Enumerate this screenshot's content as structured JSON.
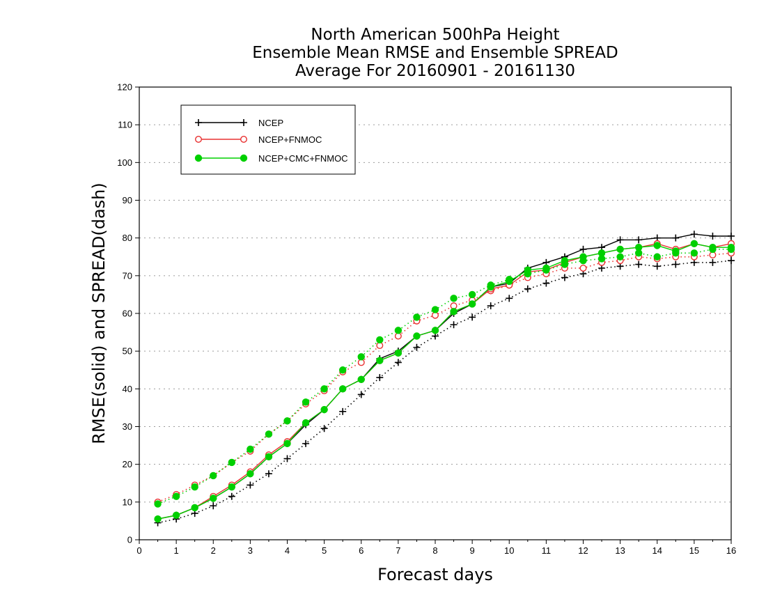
{
  "chart_data": {
    "type": "line",
    "title_lines": [
      "North American 500hPa Height",
      "Ensemble Mean RMSE and Ensemble SPREAD",
      "Average For 20160901 - 20161130"
    ],
    "xlabel": "Forecast days",
    "ylabel": "RMSE(solid) and SPREAD(dash)",
    "xlim": [
      0,
      16
    ],
    "ylim": [
      0,
      120
    ],
    "xticks": [
      0,
      1,
      2,
      3,
      4,
      5,
      6,
      7,
      8,
      9,
      10,
      11,
      12,
      13,
      14,
      15,
      16
    ],
    "yticks": [
      0,
      10,
      20,
      30,
      40,
      50,
      60,
      70,
      80,
      90,
      100,
      110,
      120
    ],
    "grid": true,
    "legend_position": "top-left",
    "x": [
      0.5,
      1,
      1.5,
      2,
      2.5,
      3,
      3.5,
      4,
      4.5,
      5,
      5.5,
      6,
      6.5,
      7,
      7.5,
      8,
      8.5,
      9,
      9.5,
      10,
      10.5,
      11,
      11.5,
      12,
      12.5,
      13,
      13.5,
      14,
      14.5,
      15,
      15.5,
      16
    ],
    "series": [
      {
        "name": "NCEP",
        "color": "#000000",
        "marker": "plus",
        "rmse": [
          5.5,
          6.5,
          8.5,
          11,
          14,
          17.5,
          22,
          25.5,
          30.5,
          34.5,
          40,
          42.5,
          48,
          50,
          54,
          55.5,
          60,
          62.5,
          67,
          68,
          72,
          73.5,
          75,
          77,
          77.5,
          79.5,
          79.5,
          80,
          80,
          81,
          80.5,
          80.5
        ],
        "spread": [
          4.5,
          5.5,
          7,
          9,
          11.5,
          14.5,
          17.5,
          21.5,
          25.5,
          29.5,
          34,
          38.5,
          43,
          47,
          51,
          54,
          57,
          59,
          62,
          64,
          66.5,
          68,
          69.5,
          70.5,
          72,
          72.5,
          73,
          72.5,
          73,
          73.5,
          73.5,
          74
        ]
      },
      {
        "name": "NCEP+FNMOC",
        "color": "#e83030",
        "marker": "open-circle",
        "rmse": [
          5.5,
          6.5,
          8.5,
          11.5,
          14.5,
          18,
          22.5,
          26,
          31,
          34.5,
          40,
          42.5,
          47.5,
          49.5,
          54,
          55.5,
          60.5,
          62.5,
          66.5,
          67.5,
          71,
          71.5,
          73.5,
          75,
          76,
          77,
          77.5,
          78.5,
          77,
          78.5,
          77.5,
          78.5
        ],
        "spread": [
          10,
          12,
          14.5,
          17,
          20.5,
          23.5,
          28,
          31.5,
          36,
          39.5,
          44.5,
          47,
          51.5,
          54,
          58,
          59.5,
          62,
          63.5,
          66,
          67.5,
          69.5,
          70.5,
          72,
          72,
          73.5,
          74,
          75,
          74.5,
          75,
          75,
          75.5,
          76
        ]
      },
      {
        "name": "NCEP+CMC+FNMOC",
        "color": "#00d000",
        "marker": "filled-circle",
        "rmse": [
          5.5,
          6.5,
          8.5,
          11,
          14,
          17.5,
          22,
          25.5,
          31,
          34.5,
          40,
          42.5,
          47.5,
          49.5,
          54,
          55.5,
          60.5,
          62.5,
          67,
          68.5,
          71.5,
          72,
          74,
          75,
          76,
          77,
          77.5,
          78,
          76.5,
          78.5,
          77.5,
          77.5
        ],
        "spread": [
          9.5,
          11.5,
          14,
          17,
          20.5,
          24,
          28,
          31.5,
          36.5,
          40,
          45,
          48.5,
          53,
          55.5,
          59,
          61,
          64,
          65,
          67.5,
          69,
          70.5,
          71.5,
          73,
          74,
          74.5,
          75,
          76,
          75,
          76,
          76,
          77,
          77
        ]
      }
    ]
  }
}
